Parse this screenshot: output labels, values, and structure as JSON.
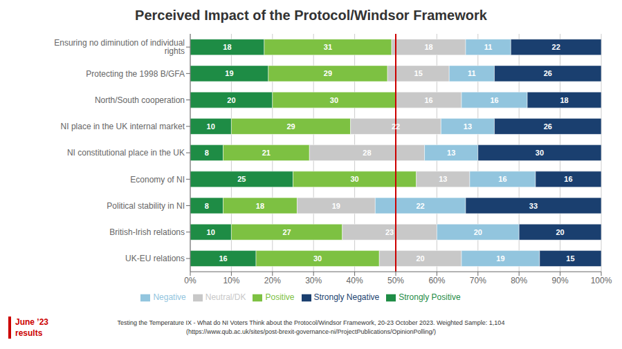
{
  "chart_data": {
    "type": "bar",
    "orientation": "horizontal",
    "stacked": true,
    "title": "Perceived Impact of the Protocol/Windsor Framework",
    "categories": [
      "Ensuring no diminution of individual rights",
      "Protecting the 1998 B/GFA",
      "North/South cooperation",
      "NI place in the UK internal market",
      "NI constitutional place in the UK",
      "Economy of NI",
      "Political stability in NI",
      "British-Irish relations",
      "UK-EU relations"
    ],
    "series": [
      {
        "name": "Strongly Positive",
        "color": "#1e8c45",
        "values": [
          18,
          19,
          20,
          10,
          8,
          25,
          8,
          10,
          16
        ]
      },
      {
        "name": "Positive",
        "color": "#7dc142",
        "values": [
          31,
          29,
          30,
          29,
          21,
          30,
          18,
          27,
          30
        ]
      },
      {
        "name": "Neutral/DK",
        "color": "#c8c8c8",
        "values": [
          18,
          15,
          16,
          22,
          28,
          13,
          19,
          23,
          20
        ]
      },
      {
        "name": "Negative",
        "color": "#92c5de",
        "values": [
          11,
          11,
          16,
          13,
          13,
          16,
          22,
          20,
          19
        ]
      },
      {
        "name": "Strongly Negative",
        "color": "#1a3f6f",
        "values": [
          22,
          26,
          18,
          26,
          30,
          16,
          33,
          20,
          15
        ]
      }
    ],
    "xlim": [
      0,
      100
    ],
    "xticks": [
      {
        "value": 0,
        "label": "0%"
      },
      {
        "value": 10,
        "label": "10%"
      },
      {
        "value": 20,
        "label": "20%"
      },
      {
        "value": 30,
        "label": "30%"
      },
      {
        "value": 40,
        "label": "40%"
      },
      {
        "value": 50,
        "label": "50%"
      },
      {
        "value": 60,
        "label": "60%"
      },
      {
        "value": 70,
        "label": "70%"
      },
      {
        "value": 80,
        "label": "80%"
      },
      {
        "value": 90,
        "label": "90%"
      },
      {
        "value": 100,
        "label": "100%"
      }
    ],
    "grid": true,
    "data_labels": true,
    "reference_line": {
      "value": 50,
      "color": "#cc0000"
    },
    "annotation": {
      "lines": [
        "June ’23",
        "results"
      ],
      "color": "#cc0000"
    },
    "footnotes": [
      "Testing the Temperature IX - What do NI Voters Think about the Protocol/Windsor Framework, 20-23 October 2023. Weighted Sample: 1,104",
      "(https://www.qub.ac.uk/sites/post-brexit-governance-ni/ProjectPublications/OpinionPolling/)"
    ]
  }
}
